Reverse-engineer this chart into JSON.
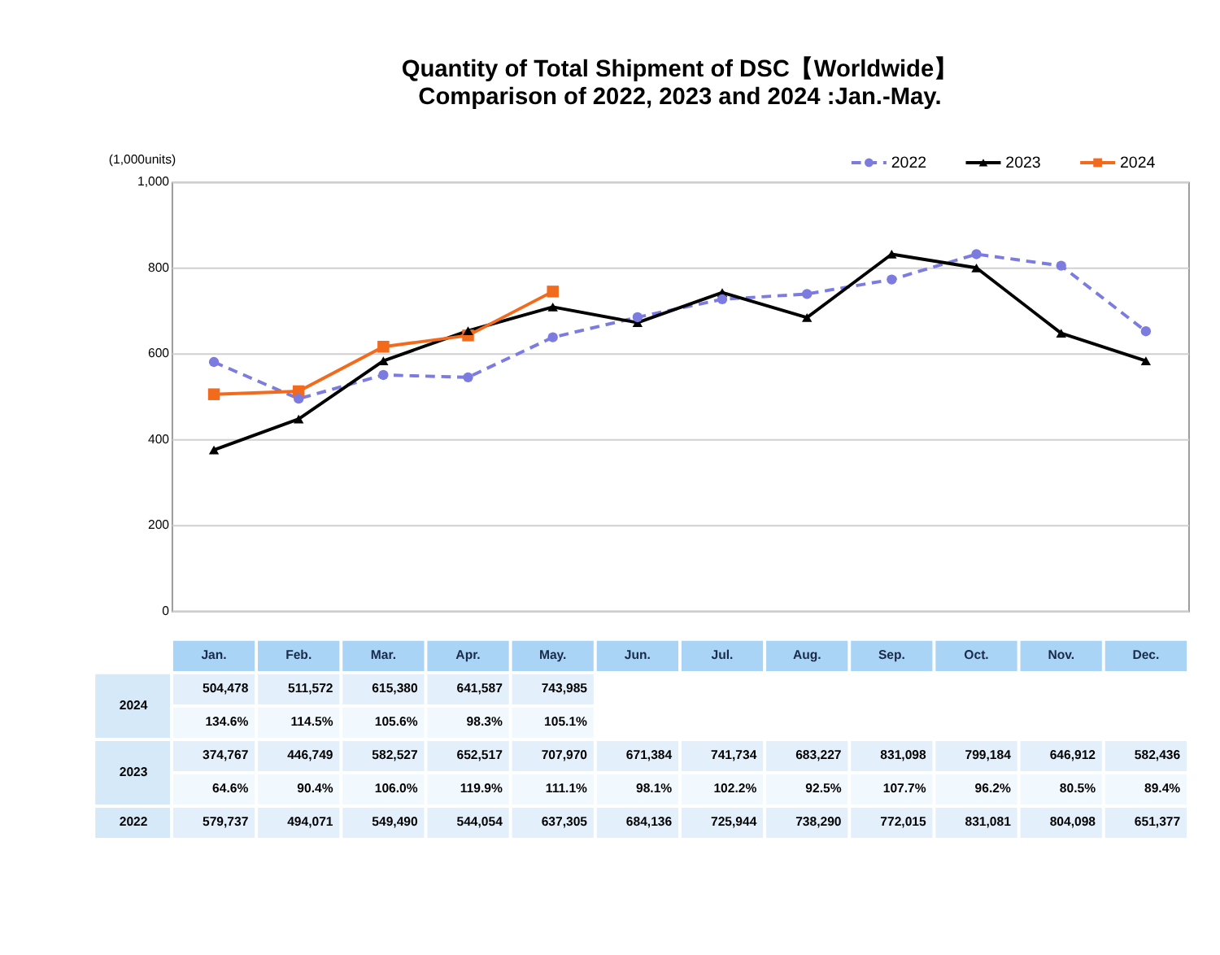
{
  "chart_data": {
    "type": "line",
    "title": "Quantity of Total Shipment of DSC【Worldwide】\nComparison of 2022, 2023 and 2024 :Jan.-May.",
    "ylabel": "(1,000units)",
    "categories": [
      "Jan.",
      "Feb.",
      "Mar.",
      "Apr.",
      "May.",
      "Jun.",
      "Jul.",
      "Aug.",
      "Sep.",
      "Oct.",
      "Nov.",
      "Dec."
    ],
    "series": [
      {
        "name": "2022",
        "color": "#7b7be0",
        "marker": "circle",
        "line_style": "dashed",
        "values": [
          579.737,
          494.071,
          549.49,
          544.054,
          637.305,
          684.136,
          725.944,
          738.29,
          772.015,
          831.081,
          804.098,
          651.377
        ]
      },
      {
        "name": "2023",
        "color": "#000000",
        "marker": "triangle",
        "line_style": "solid",
        "values": [
          374.767,
          446.749,
          582.527,
          652.517,
          707.97,
          671.384,
          741.734,
          683.227,
          831.098,
          799.184,
          646.912,
          582.436
        ]
      },
      {
        "name": "2024",
        "color": "#f26b1d",
        "marker": "square",
        "line_style": "solid",
        "values": [
          504.478,
          511.572,
          615.38,
          641.587,
          743.985,
          null,
          null,
          null,
          null,
          null,
          null,
          null
        ]
      }
    ],
    "annotations": [
      "504,478",
      "511,572",
      "615,380",
      "641,587",
      "743,985",
      "134.6%",
      "114.5%",
      "105.6%",
      "98.3%",
      "105.1%",
      "374,767",
      "446,749",
      "582,527",
      "652,517",
      "707,970",
      "671,384",
      "741,734",
      "683,227",
      "831,098",
      "799,184",
      "646,912",
      "582,436",
      "64.6%",
      "90.4%",
      "106.0%",
      "119.9%",
      "111.1%",
      "98.1%",
      "102.2%",
      "92.5%",
      "107.7%",
      "96.2%",
      "80.5%",
      "89.4%",
      "579,737",
      "494,071",
      "549,490",
      "544,054",
      "637,305",
      "684,136",
      "725,944",
      "738,290",
      "772,015",
      "831,081",
      "804,098",
      "651,377"
    ],
    "ylim": [
      0,
      1000
    ],
    "yticks": [
      0,
      200,
      400,
      600,
      800,
      {
        "value": 1000,
        "label": "1,000"
      }
    ],
    "grid": "y",
    "legend": "top right"
  }
}
